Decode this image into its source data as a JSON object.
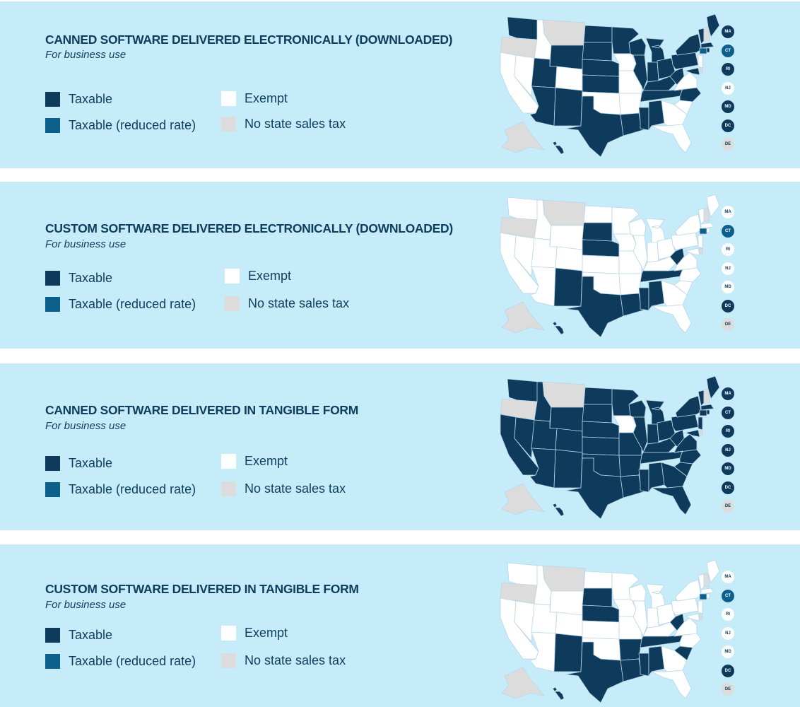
{
  "colors": {
    "background": "#c6ecfa",
    "taxable": "#0e3a5c",
    "reduced": "#0d5f8c",
    "exempt": "#ffffff",
    "no_tax": "#dcdcdc",
    "text": "#0e3d5e",
    "border": "#b9d6e6"
  },
  "legend": {
    "taxable": "Taxable",
    "reduced": "Taxable (reduced rate)",
    "exempt": "Exempt",
    "no_tax": "No state sales tax"
  },
  "badge_states": [
    "MA",
    "CT",
    "RI",
    "NJ",
    "MD",
    "DC",
    "DE"
  ],
  "panels": [
    {
      "title": "CANNED SOFTWARE DELIVERED ELECTRONICALLY (DOWNLOADED)",
      "subtitle": "For business use",
      "badges": {
        "MA": "taxable",
        "CT": "reduced",
        "RI": "taxable",
        "NJ": "exempt",
        "MD": "taxable",
        "DC": "taxable",
        "DE": "no_tax"
      },
      "states": {
        "WA": "taxable",
        "OR": "no_tax",
        "CA": "exempt",
        "NV": "exempt",
        "ID": "exempt",
        "MT": "no_tax",
        "WY": "taxable",
        "UT": "taxable",
        "AZ": "taxable",
        "CO": "exempt",
        "NM": "taxable",
        "ND": "taxable",
        "SD": "taxable",
        "NE": "taxable",
        "KS": "taxable",
        "OK": "exempt",
        "TX": "taxable",
        "MN": "taxable",
        "IA": "exempt",
        "MO": "exempt",
        "AR": "exempt",
        "LA": "taxable",
        "WI": "taxable",
        "IL": "taxable",
        "MS": "taxable",
        "MI": "taxable",
        "IN": "taxable",
        "KY": "taxable",
        "TN": "taxable",
        "AL": "taxable",
        "OH": "taxable",
        "WV": "taxable",
        "VA": "exempt",
        "NC": "taxable",
        "SC": "exempt",
        "GA": "exempt",
        "FL": "exempt",
        "PA": "taxable",
        "NY": "taxable",
        "VT": "taxable",
        "NH": "no_tax",
        "ME": "taxable",
        "MA": "taxable",
        "CT": "reduced",
        "RI": "taxable",
        "NJ": "exempt",
        "MD": "taxable",
        "DE": "no_tax",
        "AK": "no_tax",
        "HI": "taxable"
      }
    },
    {
      "title": "CUSTOM SOFTWARE DELIVERED ELECTRONICALLY (DOWNLOADED)",
      "subtitle": "For business use",
      "badges": {
        "MA": "exempt",
        "CT": "reduced",
        "RI": "exempt",
        "NJ": "exempt",
        "MD": "exempt",
        "DC": "taxable",
        "DE": "no_tax"
      },
      "states": {
        "WA": "exempt",
        "OR": "no_tax",
        "CA": "exempt",
        "NV": "exempt",
        "ID": "exempt",
        "MT": "no_tax",
        "WY": "exempt",
        "UT": "exempt",
        "AZ": "exempt",
        "CO": "exempt",
        "NM": "taxable",
        "ND": "exempt",
        "SD": "taxable",
        "NE": "taxable",
        "KS": "exempt",
        "OK": "exempt",
        "TX": "taxable",
        "MN": "exempt",
        "IA": "exempt",
        "MO": "exempt",
        "AR": "exempt",
        "LA": "taxable",
        "WI": "exempt",
        "IL": "exempt",
        "MS": "taxable",
        "MI": "exempt",
        "IN": "exempt",
        "KY": "exempt",
        "TN": "taxable",
        "AL": "taxable",
        "OH": "exempt",
        "WV": "taxable",
        "VA": "exempt",
        "NC": "exempt",
        "SC": "exempt",
        "GA": "exempt",
        "FL": "exempt",
        "PA": "exempt",
        "NY": "exempt",
        "VT": "exempt",
        "NH": "no_tax",
        "ME": "exempt",
        "MA": "exempt",
        "CT": "reduced",
        "RI": "exempt",
        "NJ": "exempt",
        "MD": "exempt",
        "DE": "no_tax",
        "AK": "no_tax",
        "HI": "taxable"
      }
    },
    {
      "title": "CANNED SOFTWARE DELIVERED IN TANGIBLE FORM",
      "subtitle": "For business use",
      "badges": {
        "MA": "taxable",
        "CT": "taxable",
        "RI": "taxable",
        "NJ": "taxable",
        "MD": "taxable",
        "DC": "taxable",
        "DE": "no_tax"
      },
      "states": {
        "WA": "taxable",
        "OR": "no_tax",
        "CA": "taxable",
        "NV": "taxable",
        "ID": "taxable",
        "MT": "no_tax",
        "WY": "taxable",
        "UT": "taxable",
        "AZ": "taxable",
        "CO": "taxable",
        "NM": "taxable",
        "ND": "taxable",
        "SD": "taxable",
        "NE": "taxable",
        "KS": "taxable",
        "OK": "taxable",
        "TX": "taxable",
        "MN": "taxable",
        "IA": "exempt",
        "MO": "taxable",
        "AR": "taxable",
        "LA": "taxable",
        "WI": "taxable",
        "IL": "taxable",
        "MS": "taxable",
        "MI": "taxable",
        "IN": "taxable",
        "KY": "taxable",
        "TN": "taxable",
        "AL": "taxable",
        "OH": "taxable",
        "WV": "taxable",
        "VA": "taxable",
        "NC": "taxable",
        "SC": "taxable",
        "GA": "taxable",
        "FL": "taxable",
        "PA": "taxable",
        "NY": "taxable",
        "VT": "taxable",
        "NH": "no_tax",
        "ME": "taxable",
        "MA": "taxable",
        "CT": "taxable",
        "RI": "taxable",
        "NJ": "taxable",
        "MD": "taxable",
        "DE": "no_tax",
        "AK": "no_tax",
        "HI": "taxable"
      }
    },
    {
      "title": "CUSTOM SOFTWARE DELIVERED IN TANGIBLE FORM",
      "subtitle": "For business use",
      "badges": {
        "MA": "exempt",
        "CT": "reduced",
        "RI": "exempt",
        "NJ": "exempt",
        "MD": "exempt",
        "DC": "taxable",
        "DE": "no_tax"
      },
      "states": {
        "WA": "exempt",
        "OR": "no_tax",
        "CA": "exempt",
        "NV": "exempt",
        "ID": "exempt",
        "MT": "no_tax",
        "WY": "exempt",
        "UT": "exempt",
        "AZ": "exempt",
        "CO": "exempt",
        "NM": "taxable",
        "ND": "exempt",
        "SD": "taxable",
        "NE": "taxable",
        "KS": "exempt",
        "OK": "exempt",
        "TX": "taxable",
        "MN": "exempt",
        "IA": "exempt",
        "MO": "exempt",
        "AR": "taxable",
        "LA": "taxable",
        "WI": "exempt",
        "IL": "exempt",
        "MS": "taxable",
        "MI": "exempt",
        "IN": "exempt",
        "KY": "exempt",
        "TN": "taxable",
        "AL": "taxable",
        "OH": "exempt",
        "WV": "taxable",
        "VA": "exempt",
        "NC": "exempt",
        "SC": "taxable",
        "GA": "exempt",
        "FL": "exempt",
        "PA": "exempt",
        "NY": "exempt",
        "VT": "exempt",
        "NH": "no_tax",
        "ME": "exempt",
        "MA": "exempt",
        "CT": "reduced",
        "RI": "exempt",
        "NJ": "exempt",
        "MD": "exempt",
        "DE": "no_tax",
        "AK": "no_tax",
        "HI": "taxable"
      }
    }
  ]
}
